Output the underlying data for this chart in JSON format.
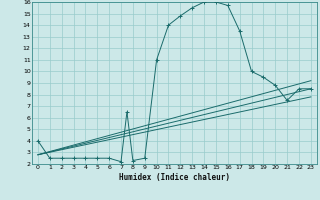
{
  "xlabel": "Humidex (Indice chaleur)",
  "bg_color": "#cce8e8",
  "grid_color": "#99cccc",
  "line_color": "#1a6b6b",
  "xlim": [
    -0.5,
    23.5
  ],
  "ylim": [
    2,
    16
  ],
  "xticks": [
    0,
    1,
    2,
    3,
    4,
    5,
    6,
    7,
    8,
    9,
    10,
    11,
    12,
    13,
    14,
    15,
    16,
    17,
    18,
    19,
    20,
    21,
    22,
    23
  ],
  "yticks": [
    2,
    3,
    4,
    5,
    6,
    7,
    8,
    9,
    10,
    11,
    12,
    13,
    14,
    15,
    16
  ],
  "line1_x": [
    0,
    1,
    2,
    3,
    4,
    5,
    6,
    7,
    7.5,
    8,
    9,
    10,
    11,
    12,
    13,
    14,
    15,
    16,
    17,
    18,
    19,
    20,
    21,
    22,
    23
  ],
  "line1_y": [
    4.0,
    2.5,
    2.5,
    2.5,
    2.5,
    2.5,
    2.5,
    2.2,
    6.5,
    2.3,
    2.5,
    11.0,
    14.0,
    14.8,
    15.5,
    16.0,
    16.0,
    15.7,
    13.5,
    10.0,
    9.5,
    8.8,
    7.5,
    8.5,
    8.5
  ],
  "line2_x": [
    0,
    23
  ],
  "line2_y": [
    2.8,
    7.8
  ],
  "line3_x": [
    0,
    23
  ],
  "line3_y": [
    2.8,
    8.5
  ],
  "line4_x": [
    0,
    23
  ],
  "line4_y": [
    2.8,
    9.2
  ]
}
